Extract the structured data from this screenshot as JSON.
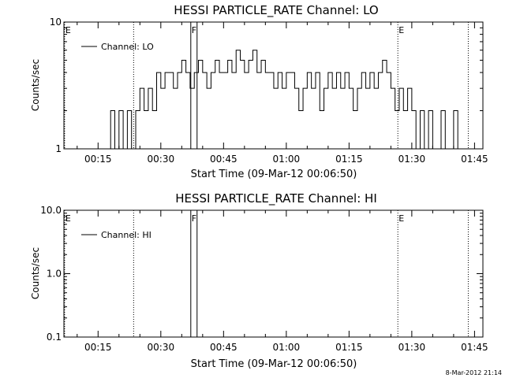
{
  "chart_data": [
    {
      "type": "line",
      "title": "HESSI PARTICLE_RATE Channel: LO",
      "xlabel": "Start Time (09-Mar-12 00:06:50)",
      "ylabel": "Counts/sec",
      "yscale": "log",
      "ylim": [
        1,
        10
      ],
      "yticks": [
        {
          "v": 1,
          "label": "1"
        },
        {
          "v": 10,
          "label": "10"
        }
      ],
      "xlim": [
        "00:06:50",
        "01:47:00"
      ],
      "xticks": [
        "00:15",
        "00:30",
        "00:45",
        "01:00",
        "01:15",
        "01:30",
        "01:45"
      ],
      "legend_label": "Channel: LO",
      "legend_position": "top-left",
      "markers": [
        {
          "label": "E",
          "x": "00:07:00",
          "style": "dotted"
        },
        {
          "label": "",
          "x": "00:23:30",
          "style": "dotted"
        },
        {
          "label": "F",
          "x": "00:37:10",
          "style": "solid"
        },
        {
          "label": "",
          "x": "00:38:40",
          "style": "solid"
        },
        {
          "label": "E",
          "x": "01:26:40",
          "style": "dotted"
        },
        {
          "label": "",
          "x": "01:43:30",
          "style": "dotted"
        }
      ],
      "series": [
        {
          "name": "Channel: LO",
          "x": [
            "00:17:30",
            "00:18:30",
            "00:19:30",
            "00:20:30",
            "00:21:30",
            "00:22:30",
            "00:23:30",
            "00:24:30",
            "00:25:30",
            "00:26:30",
            "00:27:30",
            "00:28:30",
            "00:29:30",
            "00:30:30",
            "00:31:30",
            "00:32:30",
            "00:33:30",
            "00:34:30",
            "00:35:30",
            "00:36:30",
            "00:37:30",
            "00:38:30",
            "00:39:30",
            "00:40:30",
            "00:41:30",
            "00:42:30",
            "00:43:30",
            "00:44:30",
            "00:45:30",
            "00:46:30",
            "00:47:30",
            "00:48:30",
            "00:49:30",
            "00:50:30",
            "00:51:30",
            "00:52:30",
            "00:53:30",
            "00:54:30",
            "00:55:30",
            "00:56:30",
            "00:57:30",
            "00:58:30",
            "00:59:30",
            "01:00:30",
            "01:01:30",
            "01:02:30",
            "01:03:30",
            "01:04:30",
            "01:05:30",
            "01:06:30",
            "01:07:30",
            "01:08:30",
            "01:09:30",
            "01:10:30",
            "01:11:30",
            "01:12:30",
            "01:13:30",
            "01:14:30",
            "01:15:30",
            "01:16:30",
            "01:17:30",
            "01:18:30",
            "01:19:30",
            "01:20:30",
            "01:21:30",
            "01:22:30",
            "01:23:30",
            "01:24:30",
            "01:25:30",
            "01:26:30",
            "01:27:30",
            "01:28:30",
            "01:29:30",
            "01:30:30",
            "01:31:30",
            "01:32:30",
            "01:33:30",
            "01:34:30",
            "01:35:30",
            "01:36:30",
            "01:37:30",
            "01:38:30",
            "01:39:30",
            "01:40:30",
            "01:41:30"
          ],
          "values": [
            1,
            2,
            1,
            2,
            1,
            2,
            1,
            2,
            3,
            2,
            3,
            2,
            4,
            3,
            4,
            4,
            3,
            4,
            5,
            4,
            3,
            4,
            5,
            4,
            3,
            4,
            5,
            4,
            4,
            5,
            4,
            6,
            5,
            4,
            5,
            6,
            4,
            5,
            4,
            4,
            3,
            4,
            3,
            4,
            4,
            3,
            2,
            3,
            4,
            3,
            4,
            2,
            3,
            4,
            3,
            4,
            3,
            4,
            3,
            2,
            3,
            4,
            3,
            4,
            3,
            4,
            5,
            4,
            3,
            2,
            3,
            2,
            3,
            2,
            1,
            2,
            1,
            2,
            1,
            1,
            2,
            1,
            1,
            2,
            1
          ]
        }
      ]
    },
    {
      "type": "line",
      "title": "HESSI PARTICLE_RATE Channel: HI",
      "xlabel": "Start Time (09-Mar-12 00:06:50)",
      "ylabel": "Counts/sec",
      "yscale": "log",
      "ylim": [
        0.1,
        10
      ],
      "yticks": [
        {
          "v": 0.1,
          "label": "0.1"
        },
        {
          "v": 1,
          "label": "1.0"
        },
        {
          "v": 10,
          "label": "10.0"
        }
      ],
      "xlim": [
        "00:06:50",
        "01:47:00"
      ],
      "xticks": [
        "00:15",
        "00:30",
        "00:45",
        "01:00",
        "01:15",
        "01:30",
        "01:45"
      ],
      "legend_label": "Channel: HI",
      "legend_position": "top-left",
      "markers": [
        {
          "label": "E",
          "x": "00:07:00",
          "style": "dotted"
        },
        {
          "label": "",
          "x": "00:23:30",
          "style": "dotted"
        },
        {
          "label": "F",
          "x": "00:37:10",
          "style": "solid"
        },
        {
          "label": "",
          "x": "00:38:40",
          "style": "solid"
        },
        {
          "label": "E",
          "x": "01:26:40",
          "style": "dotted"
        },
        {
          "label": "",
          "x": "01:43:30",
          "style": "dotted"
        }
      ],
      "series": []
    }
  ],
  "footer": {
    "timestamp": "8-Mar-2012 21:14"
  },
  "colors": {
    "line": "#000000",
    "background": "#ffffff"
  }
}
